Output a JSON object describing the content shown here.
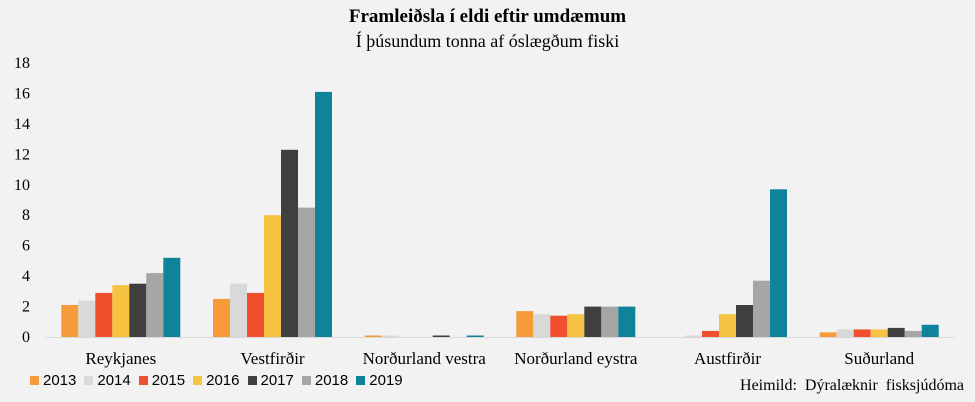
{
  "chart_data": {
    "type": "bar",
    "title": "Framleiðsla í eldi eftir umdæmum",
    "subtitle": "Í þúsundum tonna af óslægðum fiski",
    "source": "Heimild:  Dýralæknir  fisksjúdóma",
    "categories": [
      "Reykjanes",
      "Vestfirðir",
      "Norðurland vestra",
      "Norðurland eystra",
      "Austfirðir",
      "Suðurland"
    ],
    "ylim": [
      0,
      18
    ],
    "yticks": [
      "0",
      "2",
      "4",
      "6",
      "8",
      "10",
      "12",
      "14",
      "16",
      "18"
    ],
    "grid": false,
    "legend_position": "bottom-left",
    "series": [
      {
        "name": "2013",
        "color": "#f79a3a",
        "values": [
          2.1,
          2.5,
          0.1,
          1.7,
          0.0,
          0.3
        ]
      },
      {
        "name": "2014",
        "color": "#d9d9d9",
        "values": [
          2.4,
          3.5,
          0.1,
          1.5,
          0.1,
          0.5
        ]
      },
      {
        "name": "2015",
        "color": "#f0502e",
        "values": [
          2.9,
          2.9,
          0.0,
          1.4,
          0.4,
          0.5
        ]
      },
      {
        "name": "2016",
        "color": "#f5c242",
        "values": [
          3.4,
          8.0,
          0.0,
          1.5,
          1.5,
          0.5
        ]
      },
      {
        "name": "2017",
        "color": "#3f3f3f",
        "values": [
          3.5,
          12.3,
          0.1,
          2.0,
          2.1,
          0.6
        ]
      },
      {
        "name": "2018",
        "color": "#a6a6a6",
        "values": [
          4.2,
          8.5,
          0.0,
          2.0,
          3.7,
          0.4
        ]
      },
      {
        "name": "2019",
        "color": "#0e849b",
        "values": [
          5.2,
          16.1,
          0.1,
          2.0,
          9.7,
          0.8
        ]
      }
    ]
  }
}
